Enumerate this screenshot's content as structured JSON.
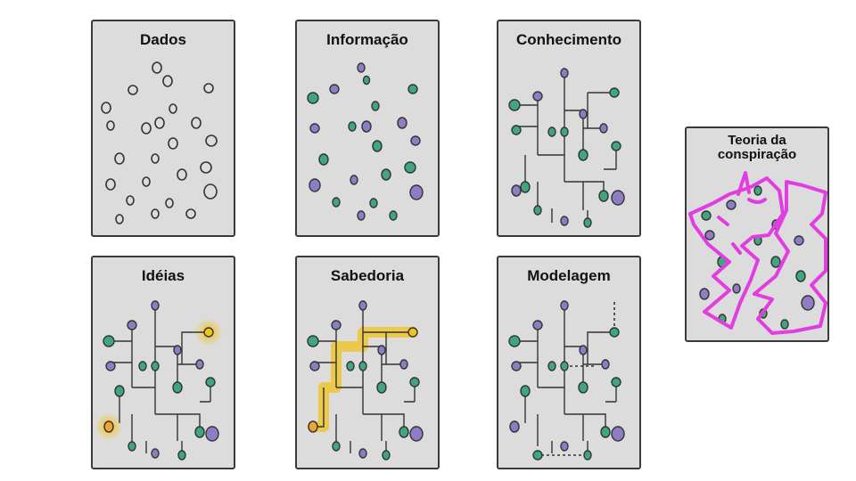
{
  "panels": {
    "dados": {
      "title": "Dados"
    },
    "informacao": {
      "title": "Informação"
    },
    "conhecimento": {
      "title": "Conhecimento"
    },
    "ideias": {
      "title": "Idéias"
    },
    "sabedoria": {
      "title": "Sabedoria"
    },
    "modelagem": {
      "title": "Modelagem"
    },
    "conspiracao": {
      "title_line1": "Teoria da",
      "title_line2": "conspiração"
    }
  },
  "colors": {
    "panel_bg": "#dcdcdc",
    "outline": "#3a3a3a",
    "green_dot": "#3fa77f",
    "purple_dot": "#8f7cc4",
    "highlight": "#f2c21b",
    "unicorn": "#e23de0"
  }
}
